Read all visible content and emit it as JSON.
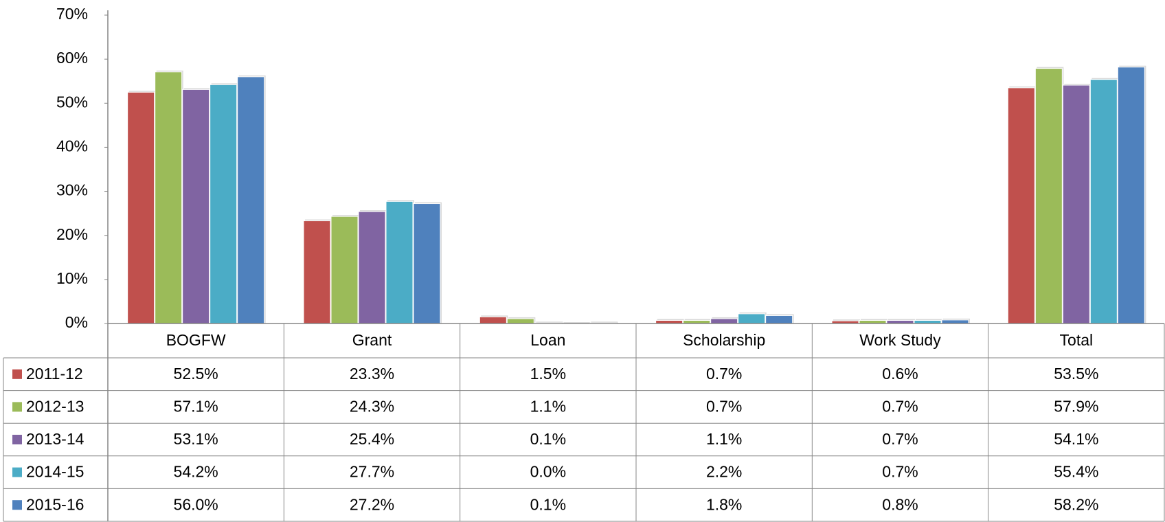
{
  "chart_data": {
    "type": "bar",
    "categories": [
      "BOGFW",
      "Grant",
      "Loan",
      "Scholarship",
      "Work Study",
      "Total"
    ],
    "series": [
      {
        "name": "2011-12",
        "color": "#c0504d",
        "values": [
          52.5,
          23.3,
          1.5,
          0.7,
          0.6,
          53.5
        ],
        "value_labels": [
          "52.5%",
          "23.3%",
          "1.5%",
          "0.7%",
          "0.6%",
          "53.5%"
        ]
      },
      {
        "name": "2012-13",
        "color": "#9bbb59",
        "values": [
          57.1,
          24.3,
          1.1,
          0.7,
          0.7,
          57.9
        ],
        "value_labels": [
          "57.1%",
          "24.3%",
          "1.1%",
          "0.7%",
          "0.7%",
          "57.9%"
        ]
      },
      {
        "name": "2013-14",
        "color": "#8064a2",
        "values": [
          53.1,
          25.4,
          0.1,
          1.1,
          0.7,
          54.1
        ],
        "value_labels": [
          "53.1%",
          "25.4%",
          "0.1%",
          "1.1%",
          "0.7%",
          "54.1%"
        ]
      },
      {
        "name": "2014-15",
        "color": "#4bacc6",
        "values": [
          54.2,
          27.7,
          0.0,
          2.2,
          0.7,
          55.4
        ],
        "value_labels": [
          "54.2%",
          "27.7%",
          "0.0%",
          "2.2%",
          "0.7%",
          "55.4%"
        ]
      },
      {
        "name": "2015-16",
        "color": "#4f81bd",
        "values": [
          56.0,
          27.2,
          0.1,
          1.8,
          0.8,
          58.2
        ],
        "value_labels": [
          "56.0%",
          "27.2%",
          "0.1%",
          "1.8%",
          "0.8%",
          "58.2%"
        ]
      }
    ],
    "ylim": [
      0,
      70
    ],
    "yticks": [
      {
        "value": 0,
        "label": "0%"
      },
      {
        "value": 10,
        "label": "10%"
      },
      {
        "value": 20,
        "label": "20%"
      },
      {
        "value": 30,
        "label": "30%"
      },
      {
        "value": 40,
        "label": "40%"
      },
      {
        "value": 50,
        "label": "50%"
      },
      {
        "value": 60,
        "label": "60%"
      },
      {
        "value": 70,
        "label": "70%"
      }
    ],
    "grid": false
  }
}
